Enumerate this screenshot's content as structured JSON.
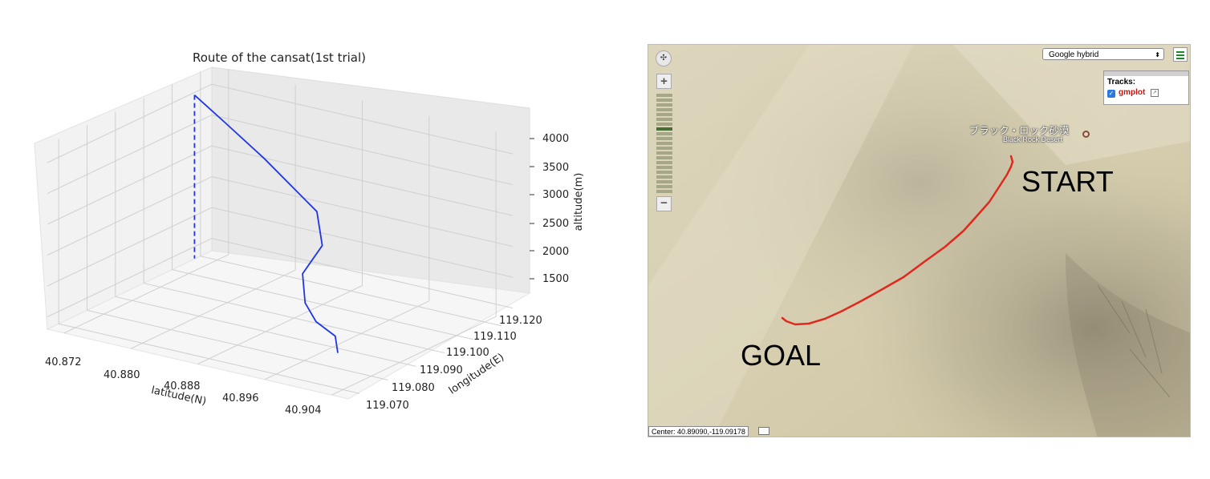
{
  "chart_data": {
    "type": "line3d",
    "title": "Route of the cansat(1st trial)",
    "xlabel": "latitude(N)",
    "ylabel": "longitude(E)",
    "zlabel": "altitude(m)",
    "x_ticks": [
      "40.872",
      "40.880",
      "40.888",
      "40.896",
      "40.904"
    ],
    "y_ticks": [
      "119.070",
      "119.080",
      "119.090",
      "119.100",
      "119.110",
      "119.120"
    ],
    "z_ticks": [
      "1500",
      "2000",
      "2500",
      "3000",
      "3500",
      "4000"
    ],
    "series": [
      {
        "style": "dashed",
        "points": [
          [
            40.872,
            119.112,
            4150
          ],
          [
            40.872,
            119.112,
            1500
          ]
        ]
      },
      {
        "style": "solid",
        "points": [
          [
            40.872,
            119.112,
            4150
          ],
          [
            40.876,
            119.111,
            3850
          ],
          [
            40.881,
            119.11,
            3450
          ],
          [
            40.888,
            119.108,
            2850
          ],
          [
            40.89,
            119.104,
            2450
          ],
          [
            40.889,
            119.1,
            2050
          ],
          [
            40.891,
            119.095,
            1750
          ],
          [
            40.894,
            119.09,
            1650
          ],
          [
            40.898,
            119.085,
            1650
          ],
          [
            40.9,
            119.08,
            1550
          ]
        ]
      }
    ],
    "grid": true,
    "color": "#1f36e8"
  },
  "map": {
    "layer_select": "Google hybrid",
    "tracks_title": "Tracks:",
    "track_name": "gmplot",
    "place_name_jp": "ブラック・ロック砂漠",
    "place_name_en": "Black Rock Desert",
    "start_label": "START",
    "goal_label": "GOAL",
    "center_readout": "Center: 40.89090,-119.09178",
    "route_color": "#e0281e"
  }
}
